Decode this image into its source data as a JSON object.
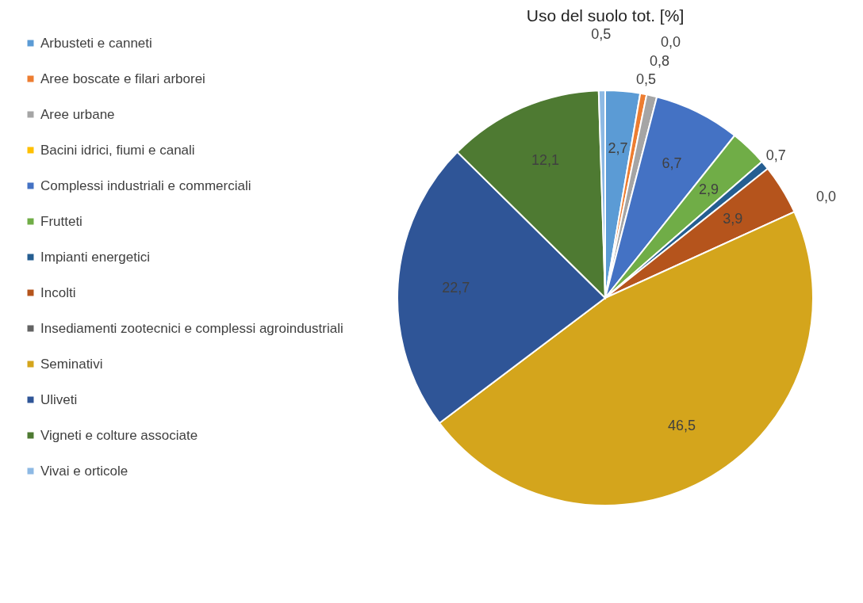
{
  "chart_data": {
    "type": "pie",
    "title": "Uso del suolo tot. [%]",
    "categories": [
      "Arbusteti e canneti",
      "Aree boscate e filari arborei",
      "Aree urbane",
      "Bacini idrici, fiumi e canali",
      "Complessi industriali e commerciali",
      "Frutteti",
      "Impianti energetici",
      "Incolti",
      "Insediamenti zootecnici e complessi agroindustriali",
      "Seminativi",
      "Uliveti",
      "Vigneti e colture associate",
      "Vivai e orticole"
    ],
    "values": [
      2.7,
      0.5,
      0.8,
      0.0,
      6.7,
      2.9,
      0.7,
      3.9,
      0.0,
      46.5,
      22.7,
      12.1,
      0.5
    ],
    "value_labels": [
      "2,7",
      "0,5",
      "0,8",
      "0,0",
      "6,7",
      "2,9",
      "0,7",
      "3,9",
      "0,0",
      "46,5",
      "22,7",
      "12,1",
      "0,5"
    ],
    "colors": [
      "#5b9bd5",
      "#ed7d31",
      "#a5a5a5",
      "#ffc000",
      "#4472c4",
      "#70ad47",
      "#255e91",
      "#b5541c",
      "#636363",
      "#d4a51c",
      "#2f5597",
      "#4e7a32",
      "#8db9e4"
    ],
    "legend": "left"
  }
}
